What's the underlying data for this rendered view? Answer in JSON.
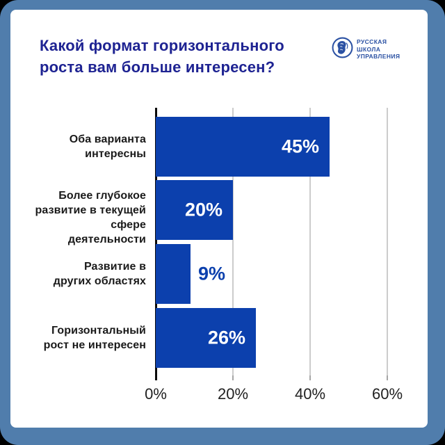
{
  "frame": {
    "border_color": "#507dac",
    "card_bg": "#ffffff",
    "outside_bg": "#000000"
  },
  "header": {
    "title_lines": [
      "Какой формат горизонтального",
      "роста вам больше интересен?"
    ],
    "title_color": "#1e2392"
  },
  "logo": {
    "lines": [
      "РУССКАЯ",
      "ШКОЛА",
      "УПРАВЛЕНИЯ"
    ],
    "color": "#2b51a3"
  },
  "chart_data": {
    "type": "bar",
    "orientation": "horizontal",
    "title": "Какой формат горизонтального роста вам больше интересен?",
    "categories": [
      "Оба варианта интересны",
      "Более глубокое развитие в текущей сфере деятельности",
      "Развитие в других областях",
      "Горизонтальный рост не интересен"
    ],
    "category_lines": [
      [
        "Оба варианта",
        "интересны"
      ],
      [
        "Более глубокое",
        "развитие в текущей",
        "сфере деятельности"
      ],
      [
        "Развитие в",
        "других областях"
      ],
      [
        "Горизонтальный",
        "рост не интересен"
      ]
    ],
    "values": [
      45,
      20,
      9,
      26
    ],
    "value_labels": [
      "45%",
      "20%",
      "9%",
      "26%"
    ],
    "x_ticks": [
      "0%",
      "20%",
      "40%",
      "60%"
    ],
    "x_tick_values": [
      0,
      20,
      40,
      60
    ],
    "xlim": [
      0,
      68
    ],
    "grid": true,
    "legend": "none",
    "bar_color": "#0c40ad",
    "value_inside_color": "#ffffff",
    "value_outside_color": "#0c40ad",
    "grid_color": "#cccccc",
    "tick_color": "#a6a6a6",
    "axis_color": "#0b0b0b",
    "category_text_color": "#1a1a1a",
    "x_tick_text_color": "#212121"
  }
}
